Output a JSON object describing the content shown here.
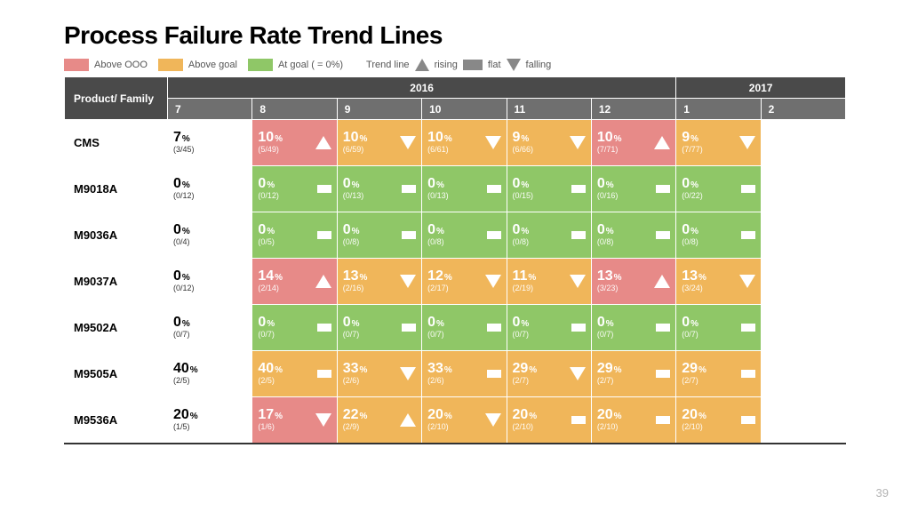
{
  "title": "Process Failure Rate Trend Lines",
  "page_number": "39",
  "legend": {
    "above_ooo": {
      "label": "Above OOO",
      "color": "#e78a88"
    },
    "above_goal": {
      "label": "Above goal",
      "color": "#f0b65a"
    },
    "at_goal": {
      "label": "At goal ( = 0%)",
      "color": "#8fc767"
    },
    "trend_line_label": "Trend line",
    "rising": "rising",
    "flat": "flat",
    "falling": "falling",
    "icon_color": "#888888"
  },
  "colors": {
    "red": "#e78a88",
    "orange": "#f0b65a",
    "green": "#8fc767",
    "header_dark": "#4a4a4a",
    "header_mid": "#6f6f6f",
    "white": "#ffffff"
  },
  "table": {
    "product_header": "Product/ Family",
    "year_groups": [
      {
        "label": "2016",
        "span": 6
      },
      {
        "label": "2017",
        "span": 2
      }
    ],
    "months": [
      "7",
      "8",
      "9",
      "10",
      "11",
      "12",
      "1",
      "2"
    ],
    "rows": [
      {
        "name": "CMS",
        "cells": [
          {
            "pct": "7",
            "frac": "(3/45)",
            "status": "plain",
            "trend": null
          },
          {
            "pct": "10",
            "frac": "(5/49)",
            "status": "red",
            "trend": "up"
          },
          {
            "pct": "10",
            "frac": "(6/59)",
            "status": "orange",
            "trend": "down"
          },
          {
            "pct": "10",
            "frac": "(6/61)",
            "status": "orange",
            "trend": "down"
          },
          {
            "pct": "9",
            "frac": "(6/66)",
            "status": "orange",
            "trend": "down"
          },
          {
            "pct": "10",
            "frac": "(7/71)",
            "status": "red",
            "trend": "up"
          },
          {
            "pct": "9",
            "frac": "(7/77)",
            "status": "orange",
            "trend": "down"
          },
          null
        ]
      },
      {
        "name": "M9018A",
        "cells": [
          {
            "pct": "0",
            "frac": "(0/12)",
            "status": "plain",
            "trend": null
          },
          {
            "pct": "0",
            "frac": "(0/12)",
            "status": "green",
            "trend": "flat"
          },
          {
            "pct": "0",
            "frac": "(0/13)",
            "status": "green",
            "trend": "flat"
          },
          {
            "pct": "0",
            "frac": "(0/13)",
            "status": "green",
            "trend": "flat"
          },
          {
            "pct": "0",
            "frac": "(0/15)",
            "status": "green",
            "trend": "flat"
          },
          {
            "pct": "0",
            "frac": "(0/16)",
            "status": "green",
            "trend": "flat"
          },
          {
            "pct": "0",
            "frac": "(0/22)",
            "status": "green",
            "trend": "flat"
          },
          null
        ]
      },
      {
        "name": "M9036A",
        "cells": [
          {
            "pct": "0",
            "frac": "(0/4)",
            "status": "plain",
            "trend": null
          },
          {
            "pct": "0",
            "frac": "(0/5)",
            "status": "green",
            "trend": "flat"
          },
          {
            "pct": "0",
            "frac": "(0/8)",
            "status": "green",
            "trend": "flat"
          },
          {
            "pct": "0",
            "frac": "(0/8)",
            "status": "green",
            "trend": "flat"
          },
          {
            "pct": "0",
            "frac": "(0/8)",
            "status": "green",
            "trend": "flat"
          },
          {
            "pct": "0",
            "frac": "(0/8)",
            "status": "green",
            "trend": "flat"
          },
          {
            "pct": "0",
            "frac": "(0/8)",
            "status": "green",
            "trend": "flat"
          },
          null
        ]
      },
      {
        "name": "M9037A",
        "cells": [
          {
            "pct": "0",
            "frac": "(0/12)",
            "status": "plain",
            "trend": null
          },
          {
            "pct": "14",
            "frac": "(2/14)",
            "status": "red",
            "trend": "up"
          },
          {
            "pct": "13",
            "frac": "(2/16)",
            "status": "orange",
            "trend": "down"
          },
          {
            "pct": "12",
            "frac": "(2/17)",
            "status": "orange",
            "trend": "down"
          },
          {
            "pct": "11",
            "frac": "(2/19)",
            "status": "orange",
            "trend": "down"
          },
          {
            "pct": "13",
            "frac": "(3/23)",
            "status": "red",
            "trend": "up"
          },
          {
            "pct": "13",
            "frac": "(3/24)",
            "status": "orange",
            "trend": "down"
          },
          null
        ]
      },
      {
        "name": "M9502A",
        "cells": [
          {
            "pct": "0",
            "frac": "(0/7)",
            "status": "plain",
            "trend": null
          },
          {
            "pct": "0",
            "frac": "(0/7)",
            "status": "green",
            "trend": "flat"
          },
          {
            "pct": "0",
            "frac": "(0/7)",
            "status": "green",
            "trend": "flat"
          },
          {
            "pct": "0",
            "frac": "(0/7)",
            "status": "green",
            "trend": "flat"
          },
          {
            "pct": "0",
            "frac": "(0/7)",
            "status": "green",
            "trend": "flat"
          },
          {
            "pct": "0",
            "frac": "(0/7)",
            "status": "green",
            "trend": "flat"
          },
          {
            "pct": "0",
            "frac": "(0/7)",
            "status": "green",
            "trend": "flat"
          },
          null
        ]
      },
      {
        "name": "M9505A",
        "cells": [
          {
            "pct": "40",
            "frac": "(2/5)",
            "status": "plain",
            "trend": null
          },
          {
            "pct": "40",
            "frac": "(2/5)",
            "status": "orange",
            "trend": "flat"
          },
          {
            "pct": "33",
            "frac": "(2/6)",
            "status": "orange",
            "trend": "down"
          },
          {
            "pct": "33",
            "frac": "(2/6)",
            "status": "orange",
            "trend": "flat"
          },
          {
            "pct": "29",
            "frac": "(2/7)",
            "status": "orange",
            "trend": "down"
          },
          {
            "pct": "29",
            "frac": "(2/7)",
            "status": "orange",
            "trend": "flat"
          },
          {
            "pct": "29",
            "frac": "(2/7)",
            "status": "orange",
            "trend": "flat"
          },
          null
        ]
      },
      {
        "name": "M9536A",
        "cells": [
          {
            "pct": "20",
            "frac": "(1/5)",
            "status": "plain",
            "trend": null
          },
          {
            "pct": "17",
            "frac": "(1/6)",
            "status": "red",
            "trend": "down"
          },
          {
            "pct": "22",
            "frac": "(2/9)",
            "status": "orange",
            "trend": "up"
          },
          {
            "pct": "20",
            "frac": "(2/10)",
            "status": "orange",
            "trend": "down"
          },
          {
            "pct": "20",
            "frac": "(2/10)",
            "status": "orange",
            "trend": "flat"
          },
          {
            "pct": "20",
            "frac": "(2/10)",
            "status": "orange",
            "trend": "flat"
          },
          {
            "pct": "20",
            "frac": "(2/10)",
            "status": "orange",
            "trend": "flat"
          },
          null
        ]
      }
    ]
  }
}
